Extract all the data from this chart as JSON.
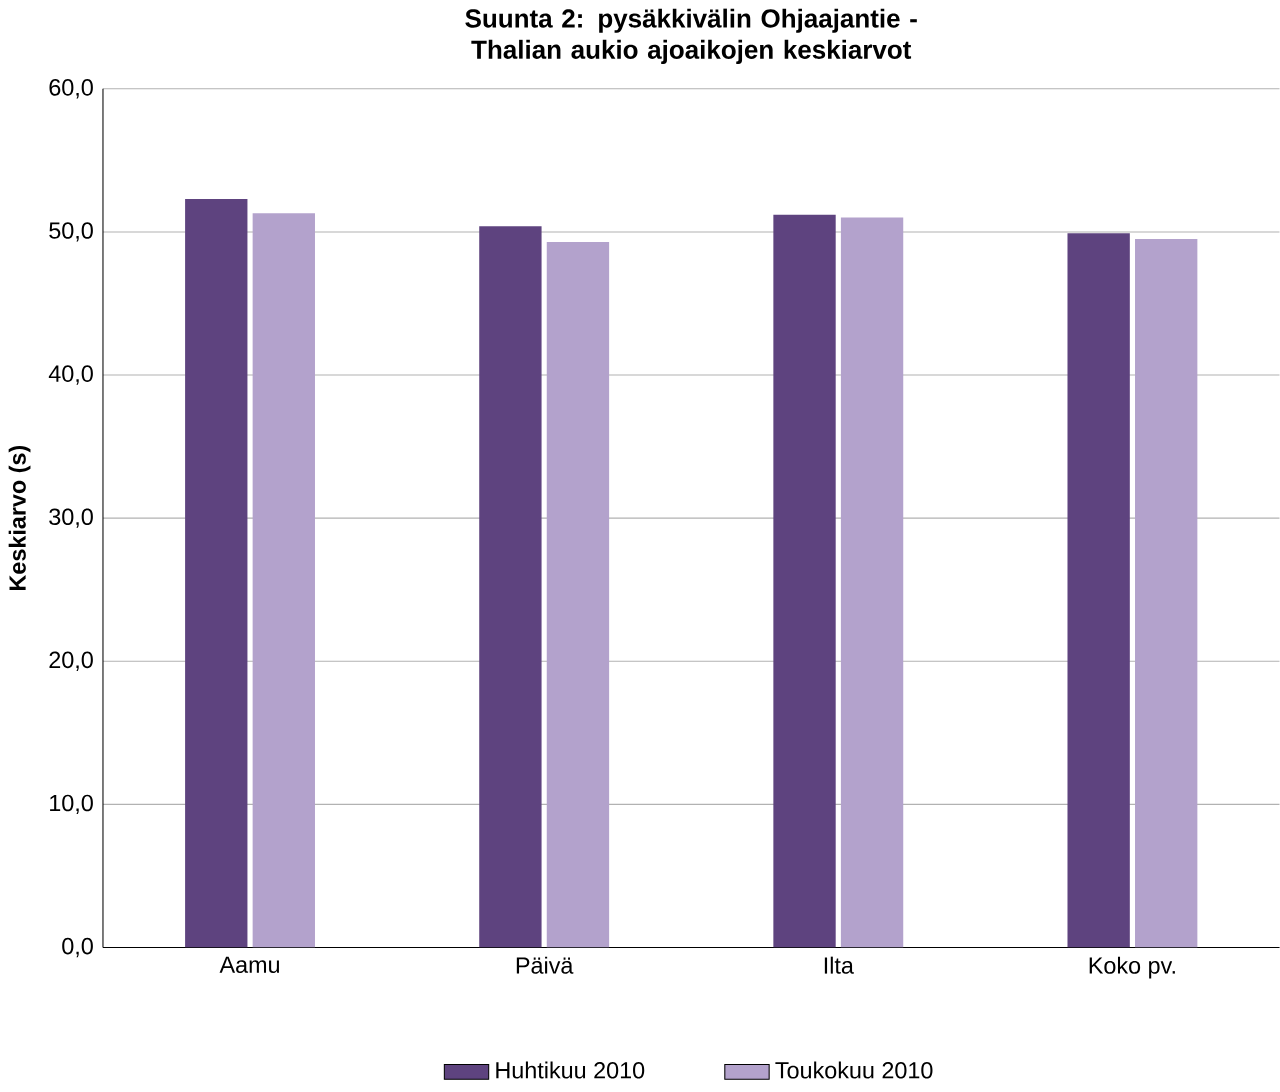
{
  "chart_data": {
    "type": "bar",
    "title": "Suunta 2: pysäkkivälin Ohjaajantie - Thalian aukio ajoaikojen keskiarvot",
    "ylabel": "Keskiarvo (s)",
    "categories": [
      "Aamu",
      "Päivä",
      "Ilta",
      "Koko pv."
    ],
    "series": [
      {
        "name": "Huhtikuu 2010",
        "color": "#5e437f",
        "values": [
          52.3,
          50.4,
          51.2,
          49.9
        ]
      },
      {
        "name": "Toukokuu 2010",
        "color": "#b3a2cc",
        "values": [
          51.3,
          49.3,
          51.0,
          49.5
        ]
      }
    ],
    "ylim": [
      0,
      60
    ],
    "yticks": [
      {
        "value": 0,
        "label": "0,0"
      },
      {
        "value": 10,
        "label": "10,0"
      },
      {
        "value": 20,
        "label": "20,0"
      },
      {
        "value": 30,
        "label": "30,0"
      },
      {
        "value": 40,
        "label": "40,0"
      },
      {
        "value": 50,
        "label": "50,0"
      },
      {
        "value": 60,
        "label": "60,0"
      }
    ],
    "grid": "y",
    "legend": "bottom"
  }
}
